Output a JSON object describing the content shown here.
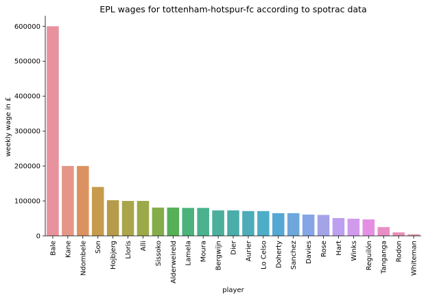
{
  "chart_data": {
    "type": "bar",
    "title": "EPL wages for tottenham-hotspur-fc according to spotrac data",
    "xlabel": "player",
    "ylabel": "weekly wage in £",
    "ylim": [
      0,
      630000
    ],
    "yticks": [
      0,
      100000,
      200000,
      300000,
      400000,
      500000,
      600000
    ],
    "ytick_labels": [
      "0",
      "100000",
      "200000",
      "300000",
      "400000",
      "500000",
      "600000"
    ],
    "grid": false,
    "legend": "none",
    "categories": [
      "Bale",
      "Kane",
      "Ndombele",
      "Son",
      "Hojbjerg",
      "Lloris",
      "Alli",
      "Sissoko",
      "Alderweireld",
      "Lamela",
      "Moura",
      "Bergwijn",
      "Dier",
      "Aurier",
      "Lo Celso",
      "Doherty",
      "Sanchez",
      "Davies",
      "Rose",
      "Hart",
      "Winks",
      "Reguilón",
      "Tanganga",
      "Rodon",
      "Whiteman"
    ],
    "values": [
      600000,
      200000,
      200000,
      140000,
      102000,
      100000,
      100000,
      81000,
      81000,
      80000,
      80000,
      73000,
      73000,
      71000,
      71000,
      65000,
      65000,
      61000,
      60000,
      51000,
      49000,
      47000,
      25000,
      10000,
      4500
    ],
    "colors": [
      "#e8929e",
      "#e59687",
      "#dc9260",
      "#c69b4d",
      "#b69b4a",
      "#aaa44a",
      "#9ca948",
      "#84ad4a",
      "#56b057",
      "#4ab27a",
      "#4ab28f",
      "#4baf9c",
      "#4badaa",
      "#4cacb7",
      "#4eaec8",
      "#55a8d4",
      "#6da7dc",
      "#85a5e7",
      "#a4a3e8",
      "#bd9ff0",
      "#d29aec",
      "#e58fe4",
      "#e88ec4",
      "#e98fb6",
      "#e893a6"
    ]
  }
}
